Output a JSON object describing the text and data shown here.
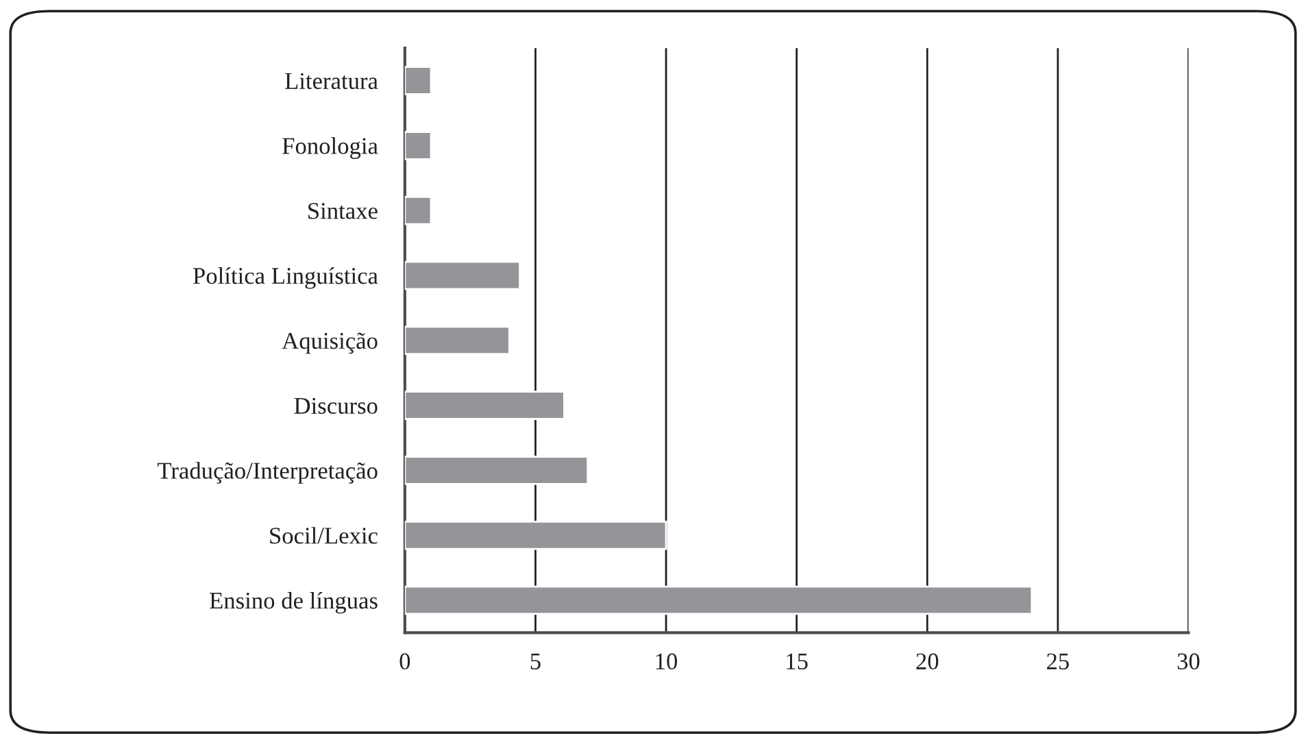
{
  "chart_data": {
    "type": "bar",
    "orientation": "horizontal",
    "categories": [
      "Literatura",
      "Fonologia",
      "Sintaxe",
      "Política Linguística",
      "Aquisição",
      "Discurso",
      "Tradução/Interpretação",
      "Socil/Lexic",
      "Ensino de línguas"
    ],
    "values": [
      1,
      1,
      1,
      4.4,
      4,
      6.1,
      7,
      10,
      24
    ],
    "color": "#939598",
    "xlim": [
      0,
      30
    ],
    "xticks": [
      0,
      5,
      10,
      15,
      20,
      25,
      30
    ],
    "grid": "x"
  }
}
